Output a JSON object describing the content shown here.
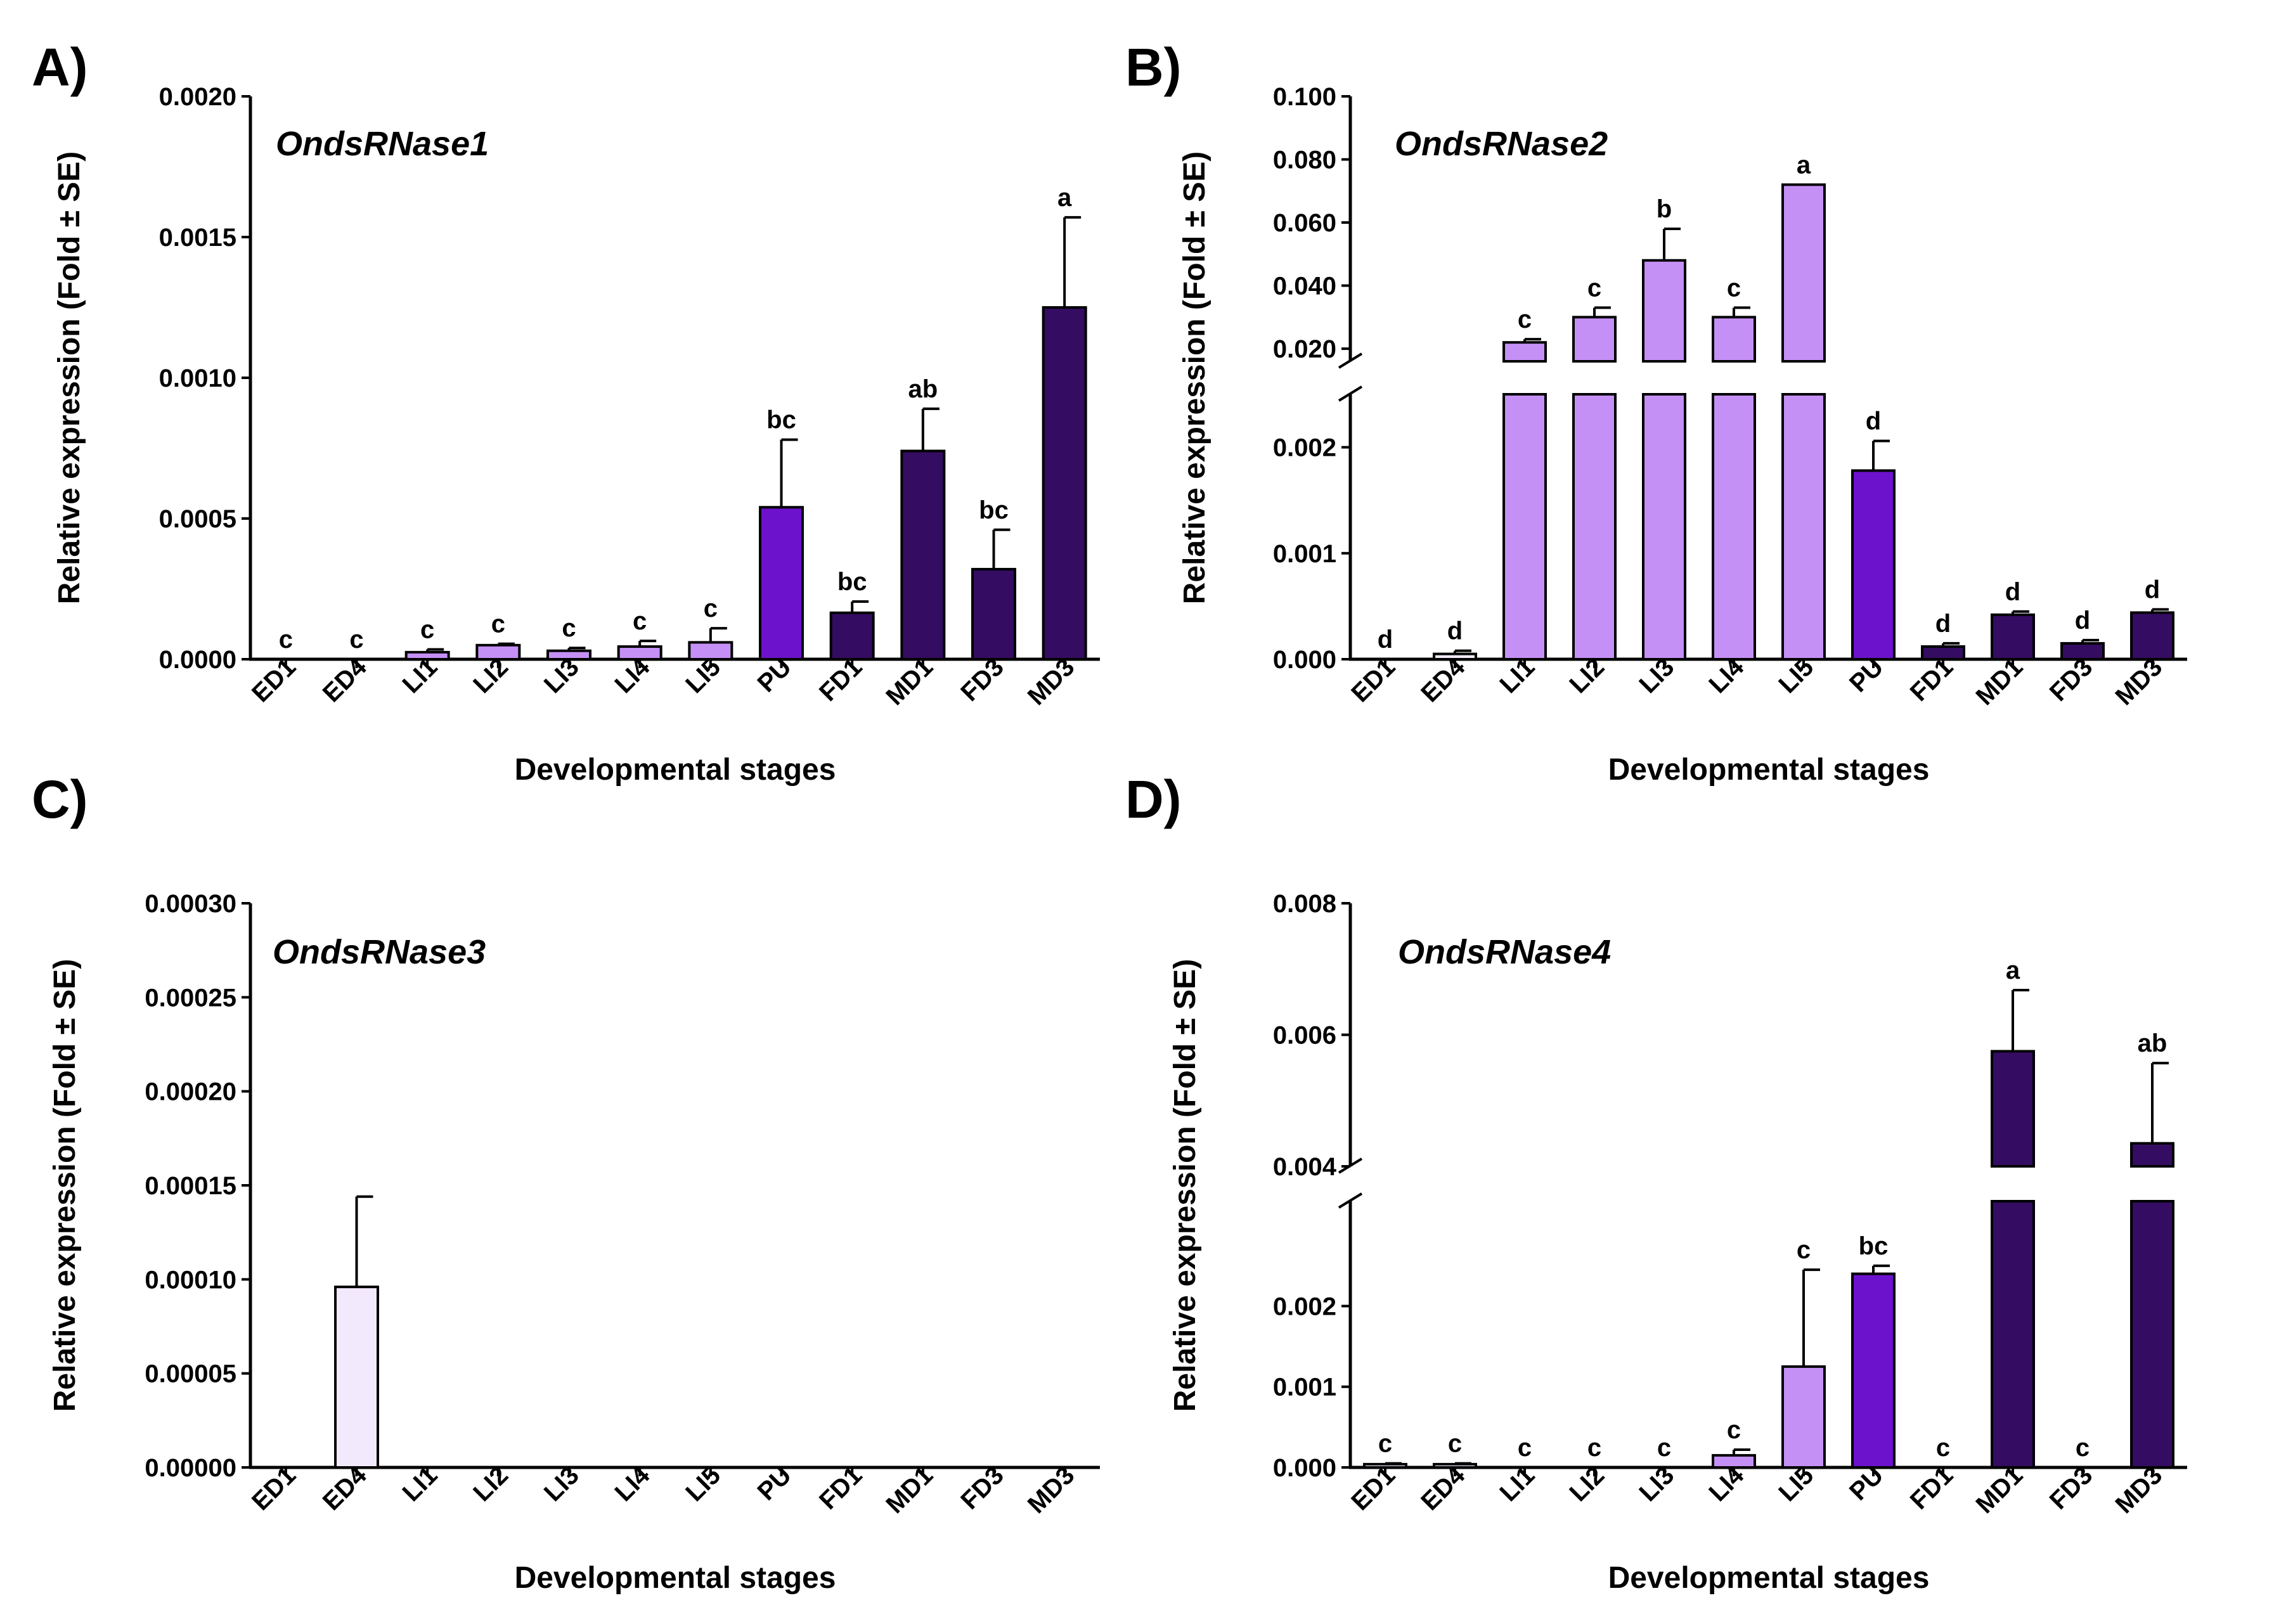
{
  "colors": {
    "ED": "#f3e9fc",
    "LI": "#c590f5",
    "PU": "#6c12cc",
    "AD": "#340c61",
    "axis": "#000000"
  },
  "chart_data": [
    {
      "type": "bar",
      "panel": "A)",
      "title": "OndsRNase1",
      "xlabel": "Developmental stages",
      "ylabel": "Relative expression (Fold ± SE)",
      "categories": [
        "ED1",
        "ED4",
        "LI1",
        "LI2",
        "LI3",
        "LI4",
        "LI5",
        "PU",
        "FD1",
        "MD1",
        "FD3",
        "MD3"
      ],
      "groups": [
        "ED",
        "ED",
        "LI",
        "LI",
        "LI",
        "LI",
        "LI",
        "PU",
        "AD",
        "AD",
        "AD",
        "AD"
      ],
      "values": [
        0,
        0,
        2.5e-05,
        5e-05,
        3e-05,
        4.5e-05,
        6e-05,
        0.00054,
        0.000165,
        0.00074,
        0.00032,
        0.00125
      ],
      "errors": [
        0,
        0,
        1e-05,
        5e-06,
        1e-05,
        2e-05,
        5e-05,
        0.00024,
        4e-05,
        0.00015,
        0.00014,
        0.00032
      ],
      "significance": [
        "c",
        "c",
        "c",
        "c",
        "c",
        "c",
        "c",
        "bc",
        "bc",
        "ab",
        "bc",
        "a"
      ],
      "ylim": [
        0,
        0.002
      ],
      "yticks": [
        0,
        0.0005,
        0.001,
        0.0015,
        0.002
      ],
      "ytick_labels": [
        "0.0000",
        "0.0005",
        "0.0010",
        "0.0015",
        "0.0020"
      ]
    },
    {
      "type": "bar",
      "panel": "B)",
      "title": "OndsRNase2",
      "xlabel": "Developmental stages",
      "ylabel": "Relative expression (Fold ± SE)",
      "categories": [
        "ED1",
        "ED4",
        "LI1",
        "LI2",
        "LI3",
        "LI4",
        "LI5",
        "PU",
        "FD1",
        "MD1",
        "FD3",
        "MD3"
      ],
      "groups": [
        "ED",
        "ED",
        "LI",
        "LI",
        "LI",
        "LI",
        "LI",
        "PU",
        "AD",
        "AD",
        "AD",
        "AD"
      ],
      "values": [
        0,
        5e-05,
        0.022,
        0.03,
        0.048,
        0.03,
        0.072,
        0.00178,
        0.00012,
        0.00042,
        0.00015,
        0.00044
      ],
      "errors": [
        0,
        3e-05,
        0.001,
        0.003,
        0.01,
        0.003,
        0,
        0.00028,
        3e-05,
        3e-05,
        3e-05,
        3e-05
      ],
      "significance": [
        "d",
        "d",
        "c",
        "c",
        "b",
        "c",
        "a",
        "d",
        "d",
        "d",
        "d",
        "d"
      ],
      "axis_break": {
        "lower": [
          0,
          0.0025
        ],
        "upper": [
          0.016,
          0.1
        ]
      },
      "yticks": [
        0,
        0.001,
        0.002,
        0.02,
        0.04,
        0.06,
        0.08,
        0.1
      ],
      "ytick_labels": [
        "0.000",
        "0.001",
        "0.002",
        "0.020",
        "0.040",
        "0.060",
        "0.080",
        "0.100"
      ]
    },
    {
      "type": "bar",
      "panel": "C)",
      "title": "OndsRNase3",
      "xlabel": "Developmental stages",
      "ylabel": "Relative expression (Fold ± SE)",
      "categories": [
        "ED1",
        "ED4",
        "LI1",
        "LI2",
        "LI3",
        "LI4",
        "LI5",
        "PU",
        "FD1",
        "MD1",
        "FD3",
        "MD3"
      ],
      "groups": [
        "ED",
        "ED",
        "LI",
        "LI",
        "LI",
        "LI",
        "LI",
        "PU",
        "AD",
        "AD",
        "AD",
        "AD"
      ],
      "values": [
        0,
        9.6e-05,
        0,
        0,
        0,
        0,
        0,
        0,
        0,
        0,
        0,
        0
      ],
      "errors": [
        0,
        4.8e-05,
        0,
        0,
        0,
        0,
        0,
        0,
        0,
        0,
        0,
        0
      ],
      "significance": [
        "",
        "",
        "",
        "",
        "",
        "",
        "",
        "",
        "",
        "",
        "",
        ""
      ],
      "ylim": [
        0,
        0.0003
      ],
      "yticks": [
        0,
        5e-05,
        0.0001,
        0.00015,
        0.0002,
        0.00025,
        0.0003
      ],
      "ytick_labels": [
        "0.00000",
        "0.00005",
        "0.00010",
        "0.00015",
        "0.00020",
        "0.00025",
        "0.00030"
      ]
    },
    {
      "type": "bar",
      "panel": "D)",
      "title": "OndsRNase4",
      "xlabel": "Developmental stages",
      "ylabel": "Relative expression (Fold ± SE)",
      "categories": [
        "ED1",
        "ED4",
        "LI1",
        "LI2",
        "LI3",
        "LI4",
        "LI5",
        "PU",
        "FD1",
        "MD1",
        "FD3",
        "MD3"
      ],
      "groups": [
        "ED",
        "ED",
        "LI",
        "LI",
        "LI",
        "LI",
        "LI",
        "PU",
        "AD",
        "AD",
        "AD",
        "AD"
      ],
      "values": [
        4e-05,
        4e-05,
        0,
        0,
        0,
        0.00015,
        0.00125,
        0.0024,
        0,
        0.00575,
        0,
        0.00435
      ],
      "errors": [
        1e-05,
        1e-05,
        0,
        0,
        0,
        7e-05,
        0.0012,
        0.0001,
        0,
        0.00093,
        0,
        0.00122
      ],
      "significance": [
        "c",
        "c",
        "c",
        "c",
        "c",
        "c",
        "c",
        "bc",
        "c",
        "a",
        "c",
        "ab"
      ],
      "axis_break": {
        "lower": [
          0,
          0.0033
        ],
        "upper": [
          0.004,
          0.008
        ]
      },
      "yticks": [
        0,
        0.001,
        0.002,
        0.004,
        0.006,
        0.008
      ],
      "ytick_labels": [
        "0.000",
        "0.001",
        "0.002",
        "0.004",
        "0.006",
        "0.008"
      ]
    }
  ]
}
